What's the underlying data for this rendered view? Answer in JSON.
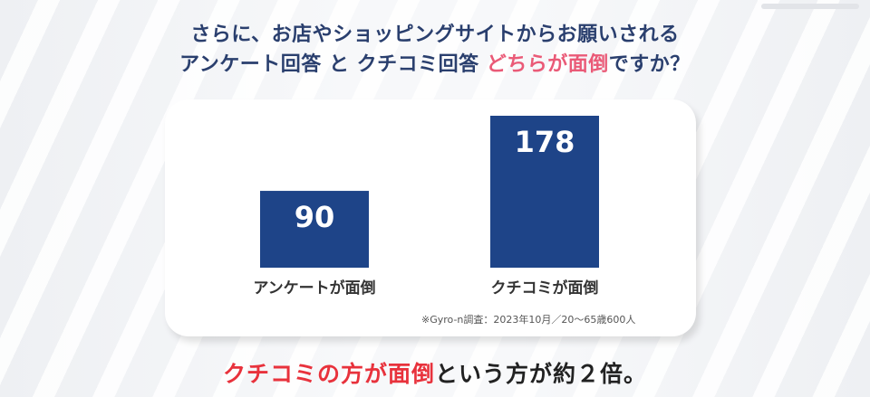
{
  "heading": {
    "line1": "さらに、お店やショッピングサイトからお願いされる",
    "line2_prefix": "アンケート回答 と クチコミ回答 ",
    "line2_accent": "どちらが面倒",
    "line2_suffix": "ですか？"
  },
  "chart_data": {
    "type": "bar",
    "categories": [
      "アンケートが面倒",
      "クチコミが面倒"
    ],
    "values": [
      90,
      178
    ],
    "data_labels": [
      "90",
      "178"
    ],
    "ylim": [
      0,
      178
    ],
    "grid": false,
    "bar_color": "#1e4488",
    "label_color": "#ffffff"
  },
  "note": "※Gyro-n調査：2023年10月／20〜65歳600人",
  "conclusion": {
    "accent": "クチコミの方が面倒",
    "rest": "という方が約２倍。",
    "accent_color": "#e8323c"
  },
  "colors": {
    "heading": "#2a3f6e",
    "heading_accent": "#ea5a77",
    "card": "#ffffff"
  }
}
